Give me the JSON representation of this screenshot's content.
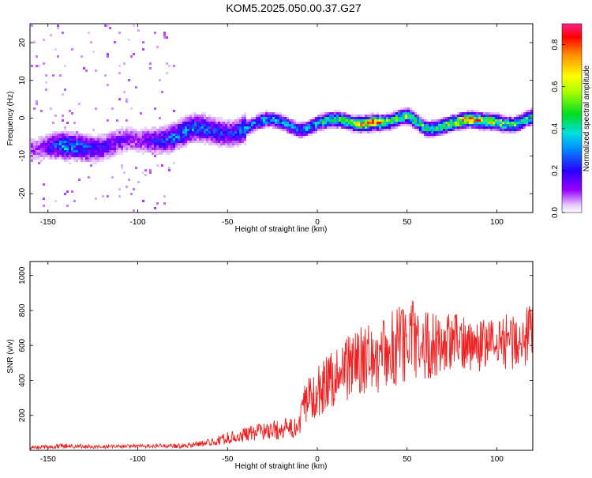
{
  "title": "KOM5.2025.050.00.37.G27",
  "chart_data": [
    {
      "type": "heatmap",
      "xlabel": "Height of straight line (km)",
      "ylabel": "Frequency (Hz)",
      "xlim": [
        -160,
        120
      ],
      "ylim": [
        -25,
        25
      ],
      "xticks": [
        -150,
        -100,
        -50,
        0,
        50,
        100
      ],
      "yticks": [
        -20,
        -10,
        0,
        10,
        20
      ],
      "colorbar": {
        "label": "Normalized spectral amplitude",
        "range": [
          0,
          0.9
        ],
        "ticks": [
          "0.0",
          "0.2",
          "0.4",
          "0.6",
          "0.8"
        ],
        "tick_values": [
          0,
          0.2,
          0.4,
          0.6,
          0.8
        ]
      },
      "trace": {
        "x": [
          -155,
          -140,
          -125,
          -110,
          -100,
          -90,
          -80,
          -70,
          -60,
          -50,
          -40,
          -30,
          -20,
          -10,
          0,
          10,
          20,
          30,
          40,
          50,
          60,
          70,
          80,
          90,
          100,
          110,
          120
        ],
        "freq": [
          -7,
          -8,
          -7,
          -6,
          -6.5,
          -5,
          -4,
          -3,
          -3.5,
          -3,
          -2,
          -1,
          -1,
          -2,
          -1,
          -1,
          -1,
          0,
          -1,
          0,
          -2,
          -1,
          -1,
          -1,
          0,
          -1,
          0
        ],
        "peak_amplitude": [
          0.1,
          0.35,
          0.2,
          0.15,
          0.1,
          0.2,
          0.3,
          0.3,
          0.25,
          0.2,
          0.3,
          0.35,
          0.35,
          0.3,
          0.4,
          0.5,
          0.55,
          0.8,
          0.5,
          0.55,
          0.45,
          0.5,
          0.75,
          0.7,
          0.6,
          0.5,
          0.45
        ]
      }
    },
    {
      "type": "line",
      "xlabel": "Height of straight line (km)",
      "ylabel": "SNR (v/v)",
      "xlim": [
        -160,
        120
      ],
      "ylim": [
        0,
        1080
      ],
      "xticks": [
        -150,
        -100,
        -50,
        0,
        50,
        100
      ],
      "yticks": [
        200,
        400,
        600,
        800,
        1000
      ],
      "series": [
        {
          "color": "#ee2222",
          "envelope_x": [
            -160,
            -140,
            -120,
            -100,
            -80,
            -70,
            -60,
            -50,
            -40,
            -30,
            -20,
            -10,
            -8,
            -5,
            0,
            10,
            20,
            30,
            40,
            45,
            50,
            54,
            60,
            70,
            80,
            90,
            100,
            110,
            120
          ],
          "envelope_mean": [
            15,
            25,
            20,
            25,
            25,
            30,
            45,
            70,
            90,
            110,
            120,
            130,
            250,
            300,
            340,
            430,
            500,
            520,
            560,
            600,
            600,
            650,
            600,
            610,
            620,
            600,
            620,
            630,
            640
          ],
          "envelope_spread": [
            8,
            15,
            10,
            10,
            12,
            15,
            20,
            35,
            40,
            50,
            60,
            60,
            120,
            130,
            150,
            180,
            200,
            200,
            220,
            250,
            230,
            250,
            200,
            180,
            160,
            150,
            150,
            170,
            200
          ]
        }
      ]
    }
  ]
}
